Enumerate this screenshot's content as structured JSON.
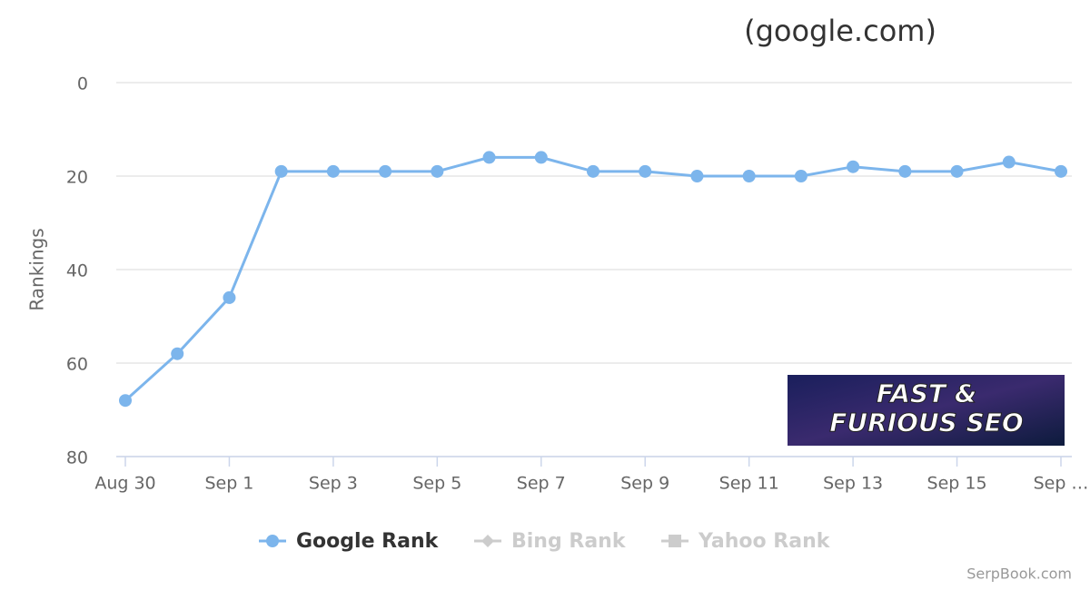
{
  "chart_data": {
    "type": "line",
    "title": "(google.com)",
    "y_label": "Rankings",
    "categories": [
      "Aug 30",
      null,
      "Sep 1",
      null,
      "Sep 3",
      null,
      "Sep 5",
      null,
      "Sep 7",
      null,
      "Sep 9",
      null,
      "Sep 11",
      null,
      "Sep 13",
      null,
      "Sep 15",
      null,
      "Sep …"
    ],
    "series": [
      {
        "name": "Google Rank",
        "color": "#7cb5ec",
        "marker": "circle",
        "visible": true,
        "values": [
          68,
          58,
          46,
          19,
          19,
          19,
          19,
          16,
          16,
          19,
          19,
          20,
          20,
          20,
          18,
          19,
          19,
          17,
          19
        ]
      },
      {
        "name": "Bing Rank",
        "color": "#cccccc",
        "marker": "diamond",
        "visible": false
      },
      {
        "name": "Yahoo Rank",
        "color": "#cccccc",
        "marker": "square",
        "visible": false
      }
    ],
    "ylim": [
      0,
      80
    ],
    "y_reversed": true,
    "yticks": [
      0,
      20,
      40,
      60,
      80
    ],
    "grid": true,
    "legend": "bottom",
    "badge": [
      "FAST &",
      "FURIOUS SEO"
    ],
    "credit": "SerpBook.com"
  }
}
